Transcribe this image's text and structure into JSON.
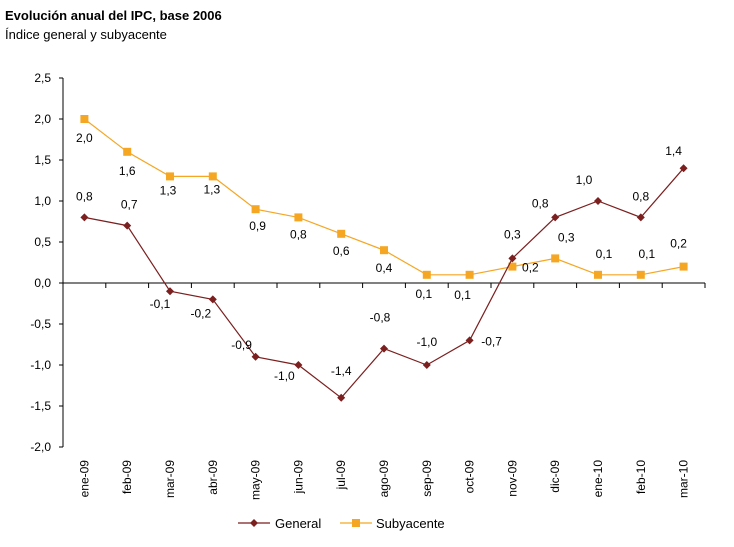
{
  "title": "Evolución anual del IPC, base 2006",
  "subtitle": "Índice general y subyacente",
  "chart_data": {
    "type": "line",
    "categories": [
      "ene-09",
      "feb-09",
      "mar-09",
      "abr-09",
      "may-09",
      "jun-09",
      "jul-09",
      "ago-09",
      "sep-09",
      "oct-09",
      "nov-09",
      "dic-09",
      "ene-10",
      "feb-10",
      "mar-10"
    ],
    "series": [
      {
        "name": "General",
        "color": "#7b1f1f",
        "marker": "diamond",
        "values": [
          0.8,
          0.7,
          -0.1,
          -0.2,
          -0.9,
          -1.0,
          -1.4,
          -0.8,
          -1.0,
          -0.7,
          0.3,
          0.8,
          1.0,
          0.8,
          1.4
        ],
        "labels": [
          "0,8",
          "0,7",
          "-0,1",
          "-0,2",
          "-0,9",
          "-1,0",
          "-1,4",
          "-0,8",
          "-1,0",
          "-0,7",
          "0,3",
          "0,8",
          "1,0",
          "0,8",
          "1,4"
        ]
      },
      {
        "name": "Subyacente",
        "color": "#f5a623",
        "marker": "square",
        "values": [
          2.0,
          1.6,
          1.3,
          1.3,
          0.9,
          0.8,
          0.6,
          0.4,
          0.1,
          0.1,
          0.2,
          0.3,
          0.1,
          0.1,
          0.2
        ],
        "labels": [
          "2,0",
          "1,6",
          "1,3",
          "1,3",
          "0,9",
          "0,8",
          "0,6",
          "0,4",
          "0,1",
          "0,1",
          "0,2",
          "0,3",
          "0,1",
          "0,1",
          "0,2"
        ]
      }
    ],
    "ylim": [
      -2.0,
      2.5
    ],
    "yticks": [
      "-2,0",
      "-1,5",
      "-1,0",
      "-0,5",
      "0,0",
      "0,5",
      "1,0",
      "1,5",
      "2,0",
      "2,5"
    ],
    "grid": false,
    "legend": "bottom-center"
  }
}
